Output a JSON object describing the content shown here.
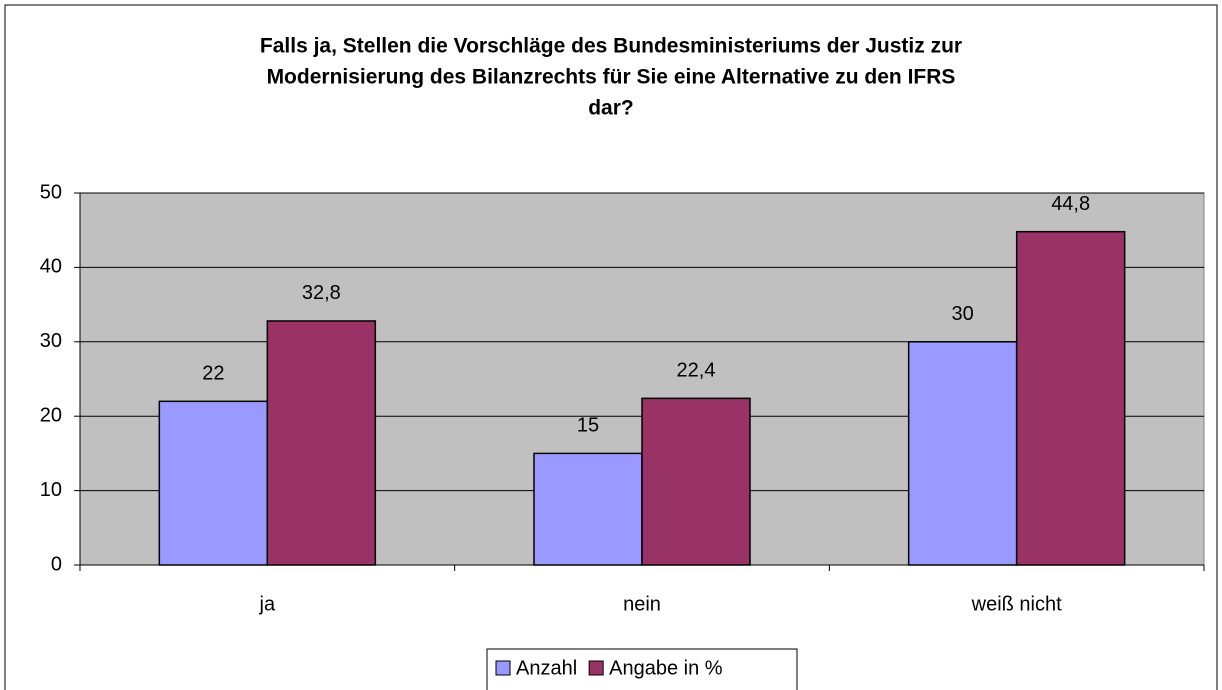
{
  "chart_data": {
    "type": "bar",
    "title": [
      "Falls ja, Stellen die Vorschläge des Bundesministeriums der Justiz zur",
      "Modernisierung des Bilanzrechts für Sie eine Alternative zu den IFRS",
      "dar?"
    ],
    "categories": [
      "ja",
      "nein",
      "weiß nicht"
    ],
    "series": [
      {
        "name": "Anzahl",
        "color": "#9999ff",
        "values": [
          22,
          15,
          30
        ]
      },
      {
        "name": "Angabe in %",
        "color": "#993366",
        "values": [
          32.8,
          22.4,
          44.8
        ],
        "value_labels": [
          "32,8",
          "22,4",
          "44,8"
        ]
      }
    ],
    "ylim": [
      0,
      50
    ],
    "yticks": [
      0,
      10,
      20,
      30,
      40,
      50
    ],
    "grid": true,
    "legend": "bottom"
  }
}
